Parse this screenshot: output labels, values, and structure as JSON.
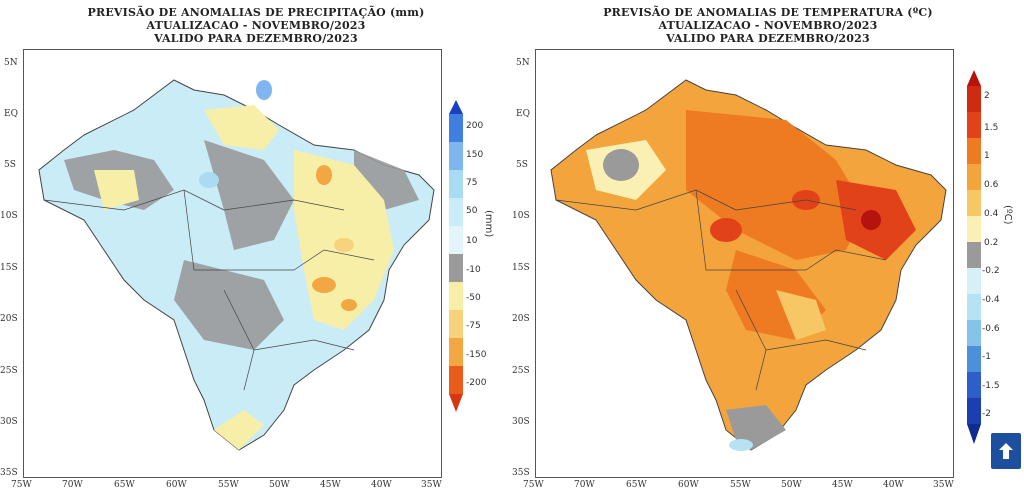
{
  "precip_panel": {
    "title_line1": "PREVISÃO DE ANOMALIAS DE PRECIPITAÇÃO (mm)",
    "title_line2": "ATUALIZACAO - NOVEMBRO/2023",
    "title_line3": "VALIDO PARA DEZEMBRO/2023",
    "unit": "(mm)",
    "colorbar_labels": [
      "200",
      "150",
      "75",
      "50",
      "10",
      "-10",
      "-50",
      "-75",
      "-150",
      "-200"
    ],
    "colors": [
      "#1b3fbf",
      "#3f7fe0",
      "#7fb6ef",
      "#a9dcf2",
      "#c9ecf7",
      "#9a9a9a",
      "#f7efa8",
      "#f6d37c",
      "#f3a742",
      "#e95d1c",
      "#d73510"
    ]
  },
  "temp_panel": {
    "title_line1": "PREVISÃO DE ANOMALIAS DE TEMPERATURA (ºC)",
    "title_line2": "ATUALIZACAO - NOVEMBRO/2023",
    "title_line3": "VALIDO PARA DEZEMBRO/2023",
    "unit": "(ºC)",
    "colorbar_labels": [
      "2",
      "1.5",
      "1",
      "0.6",
      "0.4",
      "0.2",
      "-0.2",
      "-0.4",
      "-0.6",
      "-1",
      "-1.5",
      "-2"
    ],
    "colors": [
      "#b4130e",
      "#e2421a",
      "#ee7a22",
      "#f3a43c",
      "#f7c766",
      "#fbf0b4",
      "#9a9a9a",
      "#d7f0f6",
      "#b6e2f1",
      "#86c3ea",
      "#4e8fdc",
      "#2e5fc9",
      "#1a3fb0"
    ]
  },
  "axes": {
    "lat_labels": [
      "5N",
      "EQ",
      "5S",
      "10S",
      "15S",
      "20S",
      "25S",
      "30S",
      "35S"
    ],
    "lon_labels": [
      "75W",
      "70W",
      "65W",
      "60W",
      "55W",
      "50W",
      "45W",
      "40W",
      "35W"
    ]
  },
  "back_to_top": {
    "icon": "arrow-up-icon",
    "color": "#1e4f9e"
  }
}
